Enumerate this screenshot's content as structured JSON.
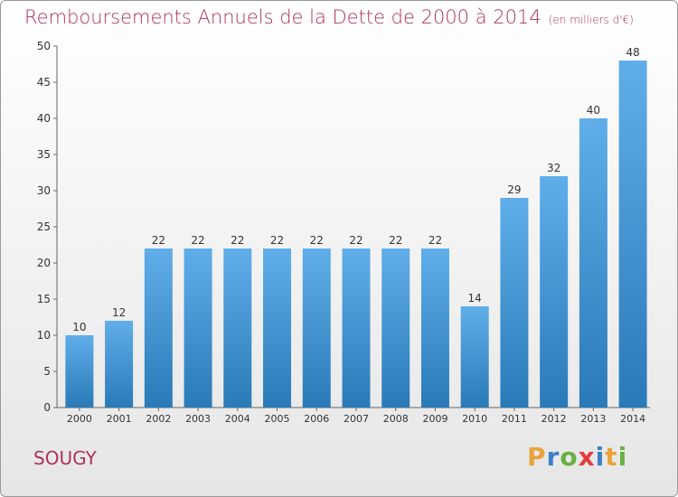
{
  "title": "Remboursements Annuels de la Dette de 2000 à 2014",
  "subtitle": "(en milliers d'€)",
  "town": "SOUGY",
  "logo": {
    "letters": [
      "P",
      "r",
      "o",
      "x",
      "i",
      "t",
      "i"
    ],
    "colors": [
      "#e8a33b",
      "#3d7fc9",
      "#6ab043",
      "#e23c3c",
      "#3d7fc9",
      "#e8a33b",
      "#6ab043"
    ]
  },
  "colors": {
    "bar_top": "#60aee9",
    "bar_bottom": "#2a7ab8",
    "title": "#b0315e"
  },
  "chart_data": {
    "type": "bar",
    "categories": [
      "2000",
      "2001",
      "2002",
      "2003",
      "2004",
      "2005",
      "2006",
      "2007",
      "2008",
      "2009",
      "2010",
      "2011",
      "2012",
      "2013",
      "2014"
    ],
    "values": [
      10,
      12,
      22,
      22,
      22,
      22,
      22,
      22,
      22,
      22,
      14,
      29,
      32,
      40,
      48
    ],
    "yticks": [
      0,
      5,
      10,
      15,
      20,
      25,
      30,
      35,
      40,
      45,
      50
    ],
    "ylim": [
      0,
      50
    ],
    "grid": false
  }
}
